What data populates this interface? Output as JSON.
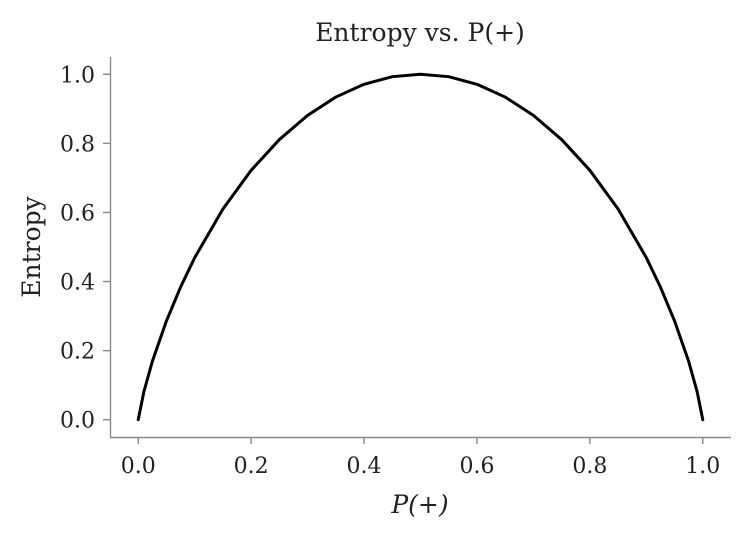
{
  "chart_data": {
    "type": "line",
    "title": "Entropy vs. P(+)",
    "xlabel": "P(+)",
    "ylabel": "Entropy",
    "xlim": [
      -0.05,
      1.05
    ],
    "ylim": [
      -0.05,
      1.05
    ],
    "xticks": [
      0.0,
      0.2,
      0.4,
      0.6,
      0.8,
      1.0
    ],
    "xtick_labels": [
      "0.0",
      "0.2",
      "0.4",
      "0.6",
      "0.8",
      "1.0"
    ],
    "yticks": [
      0.0,
      0.2,
      0.4,
      0.6,
      0.8,
      1.0
    ],
    "ytick_labels": [
      "0.0",
      "0.2",
      "0.4",
      "0.6",
      "0.8",
      "1.0"
    ],
    "grid": false,
    "legend": "none",
    "series": [
      {
        "color": "#000000",
        "x": [
          0.0,
          0.01,
          0.025,
          0.05,
          0.075,
          0.1,
          0.15,
          0.2,
          0.25,
          0.3,
          0.35,
          0.4,
          0.45,
          0.5,
          0.55,
          0.6,
          0.65,
          0.7,
          0.75,
          0.8,
          0.85,
          0.9,
          0.925,
          0.95,
          0.975,
          0.99,
          1.0
        ],
        "y": [
          0.0,
          0.081,
          0.169,
          0.286,
          0.384,
          0.469,
          0.61,
          0.722,
          0.811,
          0.881,
          0.934,
          0.971,
          0.993,
          1.0,
          0.993,
          0.971,
          0.934,
          0.881,
          0.811,
          0.722,
          0.61,
          0.469,
          0.384,
          0.286,
          0.169,
          0.081,
          0.0
        ]
      }
    ]
  }
}
